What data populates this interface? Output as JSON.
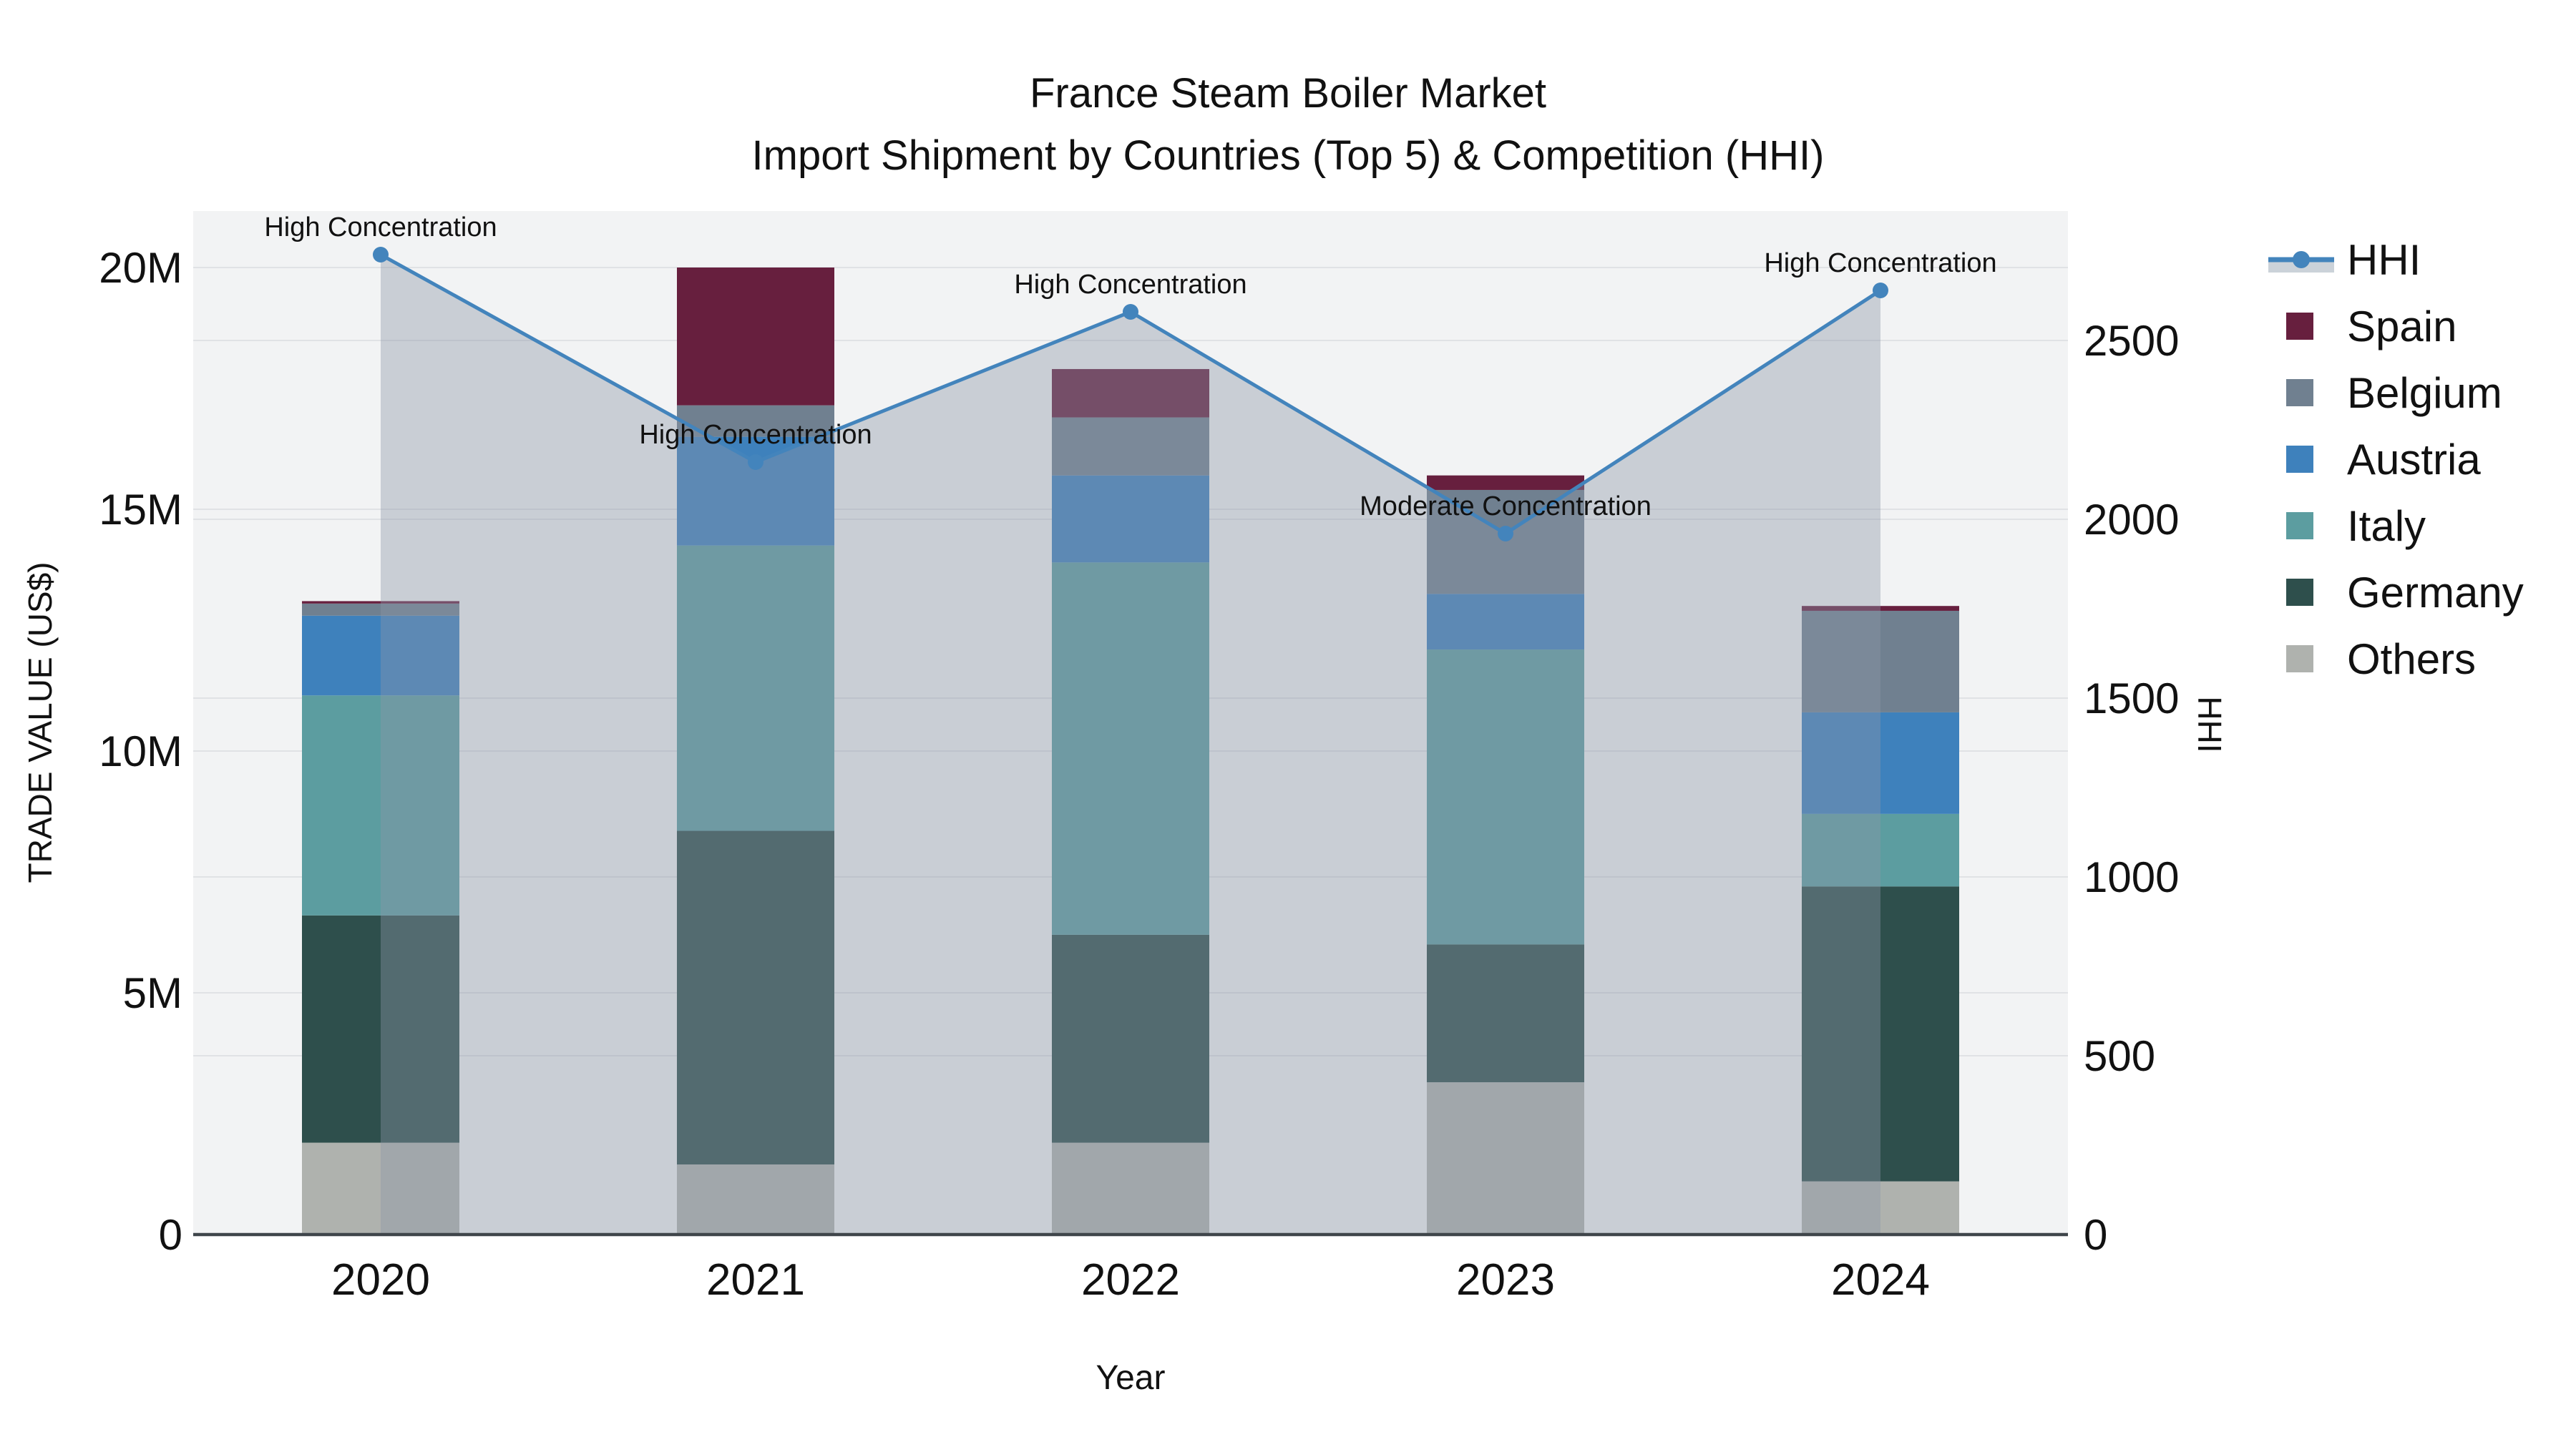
{
  "title": {
    "line1": "France Steam Boiler Market",
    "line2": "Import Shipment by Countries (Top 5) & Competition (HHI)"
  },
  "axes": {
    "x_title": "Year",
    "y_left_title": "TRADE VALUE (US$)",
    "y_right_title": "HHI",
    "x_ticks": [
      "2020",
      "2021",
      "2022",
      "2023",
      "2024"
    ],
    "y_left_ticks": [
      "0",
      "5M",
      "10M",
      "15M",
      "20M"
    ],
    "y_right_ticks": [
      "0",
      "500",
      "1000",
      "1500",
      "2000",
      "2500"
    ]
  },
  "legend": {
    "items": [
      {
        "label": "HHI",
        "type": "line",
        "color": "#4384BC"
      },
      {
        "label": "Spain",
        "type": "swatch",
        "color": "#671F3E"
      },
      {
        "label": "Belgium",
        "type": "swatch",
        "color": "#708090"
      },
      {
        "label": "Austria",
        "type": "swatch",
        "color": "#3E81BC"
      },
      {
        "label": "Italy",
        "type": "swatch",
        "color": "#5C9DA0"
      },
      {
        "label": "Germany",
        "type": "swatch",
        "color": "#2E4F4C"
      },
      {
        "label": "Others",
        "type": "swatch",
        "color": "#AFB2AE"
      }
    ]
  },
  "style": {
    "plot_bg": "#F2F3F4",
    "grid_color": "#E0E2E5",
    "axis_line_color": "#3F454A",
    "hhi_line_color": "#4384BC",
    "hhi_area_fill": "rgba(141,151,168,0.40)",
    "legend_area_sample": "#CBD2D9",
    "text_color": "#111111"
  },
  "chart_data": {
    "type": "bar+line",
    "title": "France Steam Boiler Market — Import Shipment by Countries (Top 5) & Competition (HHI)",
    "xlabel": "Year",
    "ylabel_left": "TRADE VALUE (US$)",
    "ylabel_right": "HHI",
    "categories": [
      "2020",
      "2021",
      "2022",
      "2023",
      "2024"
    ],
    "bar_unit": "M US$",
    "ylim_left_M": [
      0,
      20.9
    ],
    "ylim_right_HHI": [
      0,
      2852
    ],
    "stack_order_bottom_to_top": [
      "Others",
      "Germany",
      "Italy",
      "Austria",
      "Belgium",
      "Spain"
    ],
    "series": [
      {
        "name": "Others",
        "color": "#AFB2AE",
        "values_M": [
          1.9,
          1.45,
          1.9,
          3.15,
          1.1
        ]
      },
      {
        "name": "Germany",
        "color": "#2E4F4C",
        "values_M": [
          4.7,
          6.9,
          4.3,
          2.85,
          6.1
        ]
      },
      {
        "name": "Italy",
        "color": "#5C9DA0",
        "values_M": [
          4.55,
          5.9,
          7.7,
          6.1,
          1.5
        ]
      },
      {
        "name": "Austria",
        "color": "#3E81BC",
        "values_M": [
          1.65,
          2.25,
          1.8,
          1.15,
          2.1
        ]
      },
      {
        "name": "Belgium",
        "color": "#708090",
        "values_M": [
          0.25,
          0.65,
          1.2,
          2.15,
          2.1
        ]
      },
      {
        "name": "Spain",
        "color": "#671F3E",
        "values_M": [
          0.05,
          2.85,
          1.0,
          0.3,
          0.1
        ]
      }
    ],
    "totals_M": [
      13.1,
      20.0,
      17.9,
      15.7,
      13.0
    ],
    "hhi": {
      "name": "HHI",
      "color": "#4384BC",
      "values": [
        2740,
        2160,
        2580,
        1960,
        2640
      ],
      "annotations": [
        "High Concentration",
        "High Concentration",
        "High Concentration",
        "Moderate Concentration",
        "High Concentration"
      ]
    },
    "grid": true,
    "legend_position": "right"
  }
}
